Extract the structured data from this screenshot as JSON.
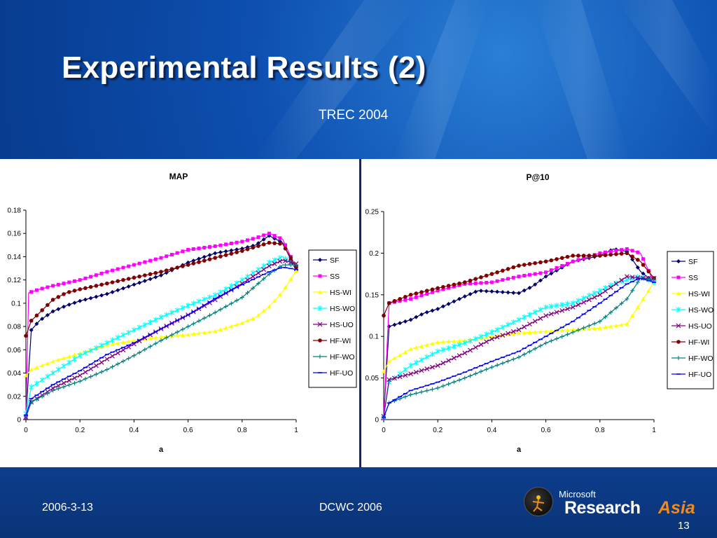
{
  "slide": {
    "title": "Experimental Results (2)",
    "subtitle": "TREC 2004",
    "footer_date": "2006-3-13",
    "footer_conf": "DCWC 2006",
    "page_number": "13",
    "logo_microsoft": "Microsoft",
    "logo_research": "Research",
    "logo_asia": "Asia"
  },
  "colors": {
    "background": "#0d4fb0",
    "SF": "#00006b",
    "SS": "#ff00ff",
    "HS-WI": "#ffff00",
    "HS-WO": "#00ffff",
    "HS-UO": "#800080",
    "HF-WI": "#800000",
    "HF-WO": "#008080",
    "HF-UO": "#0000ff"
  },
  "chart_data": [
    {
      "type": "line",
      "title": "MAP",
      "xlabel": "a",
      "ylabel": "",
      "xlim": [
        0,
        1
      ],
      "ylim": [
        0,
        0.18
      ],
      "xticks": [
        "0",
        "0.2",
        "0.4",
        "0.6",
        "0.8",
        "1"
      ],
      "yticks": [
        "0",
        "0.02",
        "0.04",
        "0.06",
        "0.08",
        "0.1",
        "0.12",
        "0.14",
        "0.16",
        "0.18"
      ],
      "legend_position": "right",
      "grid": false,
      "series": [
        {
          "name": "SF",
          "points": [
            [
              0,
              0.003
            ],
            [
              0.02,
              0.077
            ],
            [
              0.05,
              0.085
            ],
            [
              0.1,
              0.093
            ],
            [
              0.15,
              0.098
            ],
            [
              0.2,
              0.102
            ],
            [
              0.3,
              0.108
            ],
            [
              0.4,
              0.116
            ],
            [
              0.5,
              0.124
            ],
            [
              0.6,
              0.135
            ],
            [
              0.7,
              0.143
            ],
            [
              0.8,
              0.147
            ],
            [
              0.85,
              0.15
            ],
            [
              0.9,
              0.158
            ],
            [
              0.95,
              0.152
            ],
            [
              1,
              0.128
            ]
          ]
        },
        {
          "name": "SS",
          "points": [
            [
              0,
              0.002
            ],
            [
              0.01,
              0.109
            ],
            [
              0.05,
              0.112
            ],
            [
              0.1,
              0.115
            ],
            [
              0.2,
              0.12
            ],
            [
              0.3,
              0.127
            ],
            [
              0.4,
              0.133
            ],
            [
              0.5,
              0.139
            ],
            [
              0.6,
              0.146
            ],
            [
              0.7,
              0.149
            ],
            [
              0.8,
              0.153
            ],
            [
              0.85,
              0.156
            ],
            [
              0.9,
              0.16
            ],
            [
              0.95,
              0.155
            ],
            [
              1,
              0.13
            ]
          ]
        },
        {
          "name": "HS-WI",
          "points": [
            [
              0,
              0.038
            ],
            [
              0.02,
              0.043
            ],
            [
              0.1,
              0.05
            ],
            [
              0.2,
              0.057
            ],
            [
              0.3,
              0.064
            ],
            [
              0.4,
              0.068
            ],
            [
              0.5,
              0.071
            ],
            [
              0.6,
              0.073
            ],
            [
              0.7,
              0.076
            ],
            [
              0.8,
              0.083
            ],
            [
              0.85,
              0.088
            ],
            [
              0.9,
              0.097
            ],
            [
              0.95,
              0.11
            ],
            [
              1,
              0.128
            ]
          ]
        },
        {
          "name": "HS-WO",
          "points": [
            [
              0,
              0.005
            ],
            [
              0.02,
              0.028
            ],
            [
              0.1,
              0.04
            ],
            [
              0.2,
              0.055
            ],
            [
              0.3,
              0.066
            ],
            [
              0.4,
              0.077
            ],
            [
              0.5,
              0.088
            ],
            [
              0.6,
              0.098
            ],
            [
              0.7,
              0.107
            ],
            [
              0.8,
              0.12
            ],
            [
              0.9,
              0.135
            ],
            [
              0.95,
              0.14
            ],
            [
              1,
              0.131
            ]
          ]
        },
        {
          "name": "HS-UO",
          "points": [
            [
              0,
              0.002
            ],
            [
              0.02,
              0.015
            ],
            [
              0.1,
              0.027
            ],
            [
              0.2,
              0.038
            ],
            [
              0.3,
              0.052
            ],
            [
              0.4,
              0.065
            ],
            [
              0.5,
              0.078
            ],
            [
              0.6,
              0.09
            ],
            [
              0.7,
              0.103
            ],
            [
              0.8,
              0.117
            ],
            [
              0.9,
              0.132
            ],
            [
              0.95,
              0.137
            ],
            [
              1,
              0.134
            ]
          ]
        },
        {
          "name": "HF-WI",
          "points": [
            [
              0,
              0.072
            ],
            [
              0.02,
              0.085
            ],
            [
              0.1,
              0.103
            ],
            [
              0.15,
              0.109
            ],
            [
              0.2,
              0.112
            ],
            [
              0.3,
              0.117
            ],
            [
              0.4,
              0.122
            ],
            [
              0.5,
              0.127
            ],
            [
              0.6,
              0.133
            ],
            [
              0.7,
              0.139
            ],
            [
              0.8,
              0.145
            ],
            [
              0.9,
              0.152
            ],
            [
              0.95,
              0.151
            ],
            [
              1,
              0.131
            ]
          ]
        },
        {
          "name": "HF-WO",
          "points": [
            [
              0,
              0.003
            ],
            [
              0.02,
              0.015
            ],
            [
              0.1,
              0.025
            ],
            [
              0.2,
              0.033
            ],
            [
              0.3,
              0.043
            ],
            [
              0.4,
              0.055
            ],
            [
              0.5,
              0.068
            ],
            [
              0.6,
              0.08
            ],
            [
              0.7,
              0.092
            ],
            [
              0.8,
              0.105
            ],
            [
              0.9,
              0.125
            ],
            [
              0.95,
              0.133
            ],
            [
              1,
              0.133
            ]
          ]
        },
        {
          "name": "HF-UO",
          "points": [
            [
              0,
              0.004
            ],
            [
              0.02,
              0.018
            ],
            [
              0.1,
              0.03
            ],
            [
              0.2,
              0.042
            ],
            [
              0.3,
              0.056
            ],
            [
              0.4,
              0.066
            ],
            [
              0.5,
              0.078
            ],
            [
              0.6,
              0.09
            ],
            [
              0.7,
              0.104
            ],
            [
              0.8,
              0.116
            ],
            [
              0.9,
              0.127
            ],
            [
              0.95,
              0.131
            ],
            [
              1,
              0.129
            ]
          ]
        }
      ]
    },
    {
      "type": "line",
      "title": "P@10",
      "xlabel": "a",
      "ylabel": "",
      "xlim": [
        0,
        1
      ],
      "ylim": [
        0,
        0.25
      ],
      "xticks": [
        "0",
        "0.2",
        "0.4",
        "0.6",
        "0.8",
        "1"
      ],
      "yticks": [
        "0",
        "0.05",
        "0.1",
        "0.15",
        "0.2",
        "0.25"
      ],
      "legend_position": "right",
      "grid": false,
      "series": [
        {
          "name": "SF",
          "points": [
            [
              0,
              0.003
            ],
            [
              0.02,
              0.112
            ],
            [
              0.1,
              0.12
            ],
            [
              0.15,
              0.128
            ],
            [
              0.2,
              0.133
            ],
            [
              0.3,
              0.148
            ],
            [
              0.35,
              0.155
            ],
            [
              0.4,
              0.154
            ],
            [
              0.5,
              0.152
            ],
            [
              0.55,
              0.16
            ],
            [
              0.6,
              0.172
            ],
            [
              0.7,
              0.19
            ],
            [
              0.8,
              0.197
            ],
            [
              0.85,
              0.205
            ],
            [
              0.9,
              0.202
            ],
            [
              0.95,
              0.178
            ],
            [
              1,
              0.165
            ]
          ]
        },
        {
          "name": "SS",
          "points": [
            [
              0,
              0.002
            ],
            [
              0.02,
              0.14
            ],
            [
              0.1,
              0.145
            ],
            [
              0.2,
              0.155
            ],
            [
              0.3,
              0.163
            ],
            [
              0.4,
              0.165
            ],
            [
              0.5,
              0.172
            ],
            [
              0.6,
              0.177
            ],
            [
              0.7,
              0.19
            ],
            [
              0.8,
              0.2
            ],
            [
              0.9,
              0.205
            ],
            [
              0.95,
              0.2
            ],
            [
              1,
              0.165
            ]
          ]
        },
        {
          "name": "HS-WI",
          "points": [
            [
              0,
              0.058
            ],
            [
              0.02,
              0.07
            ],
            [
              0.1,
              0.085
            ],
            [
              0.2,
              0.093
            ],
            [
              0.3,
              0.095
            ],
            [
              0.4,
              0.1
            ],
            [
              0.5,
              0.104
            ],
            [
              0.6,
              0.106
            ],
            [
              0.7,
              0.108
            ],
            [
              0.8,
              0.11
            ],
            [
              0.9,
              0.115
            ],
            [
              0.95,
              0.14
            ],
            [
              1,
              0.165
            ]
          ]
        },
        {
          "name": "HS-WO",
          "points": [
            [
              0,
              0.003
            ],
            [
              0.02,
              0.045
            ],
            [
              0.1,
              0.065
            ],
            [
              0.2,
              0.082
            ],
            [
              0.3,
              0.092
            ],
            [
              0.4,
              0.105
            ],
            [
              0.5,
              0.12
            ],
            [
              0.6,
              0.135
            ],
            [
              0.7,
              0.14
            ],
            [
              0.8,
              0.155
            ],
            [
              0.85,
              0.163
            ],
            [
              0.9,
              0.168
            ],
            [
              0.95,
              0.172
            ],
            [
              1,
              0.165
            ]
          ]
        },
        {
          "name": "HS-UO",
          "points": [
            [
              0,
              0.004
            ],
            [
              0.02,
              0.048
            ],
            [
              0.1,
              0.055
            ],
            [
              0.2,
              0.065
            ],
            [
              0.3,
              0.08
            ],
            [
              0.4,
              0.097
            ],
            [
              0.5,
              0.108
            ],
            [
              0.6,
              0.125
            ],
            [
              0.7,
              0.135
            ],
            [
              0.8,
              0.15
            ],
            [
              0.9,
              0.172
            ],
            [
              0.95,
              0.17
            ],
            [
              1,
              0.17
            ]
          ]
        },
        {
          "name": "HF-WI",
          "points": [
            [
              0,
              0.125
            ],
            [
              0.02,
              0.14
            ],
            [
              0.1,
              0.15
            ],
            [
              0.2,
              0.158
            ],
            [
              0.3,
              0.165
            ],
            [
              0.4,
              0.175
            ],
            [
              0.5,
              0.185
            ],
            [
              0.6,
              0.19
            ],
            [
              0.7,
              0.197
            ],
            [
              0.8,
              0.197
            ],
            [
              0.9,
              0.2
            ],
            [
              0.95,
              0.19
            ],
            [
              1,
              0.17
            ]
          ]
        },
        {
          "name": "HF-WO",
          "points": [
            [
              0,
              0.002
            ],
            [
              0.02,
              0.02
            ],
            [
              0.1,
              0.03
            ],
            [
              0.2,
              0.038
            ],
            [
              0.3,
              0.05
            ],
            [
              0.4,
              0.063
            ],
            [
              0.5,
              0.075
            ],
            [
              0.6,
              0.092
            ],
            [
              0.7,
              0.105
            ],
            [
              0.8,
              0.118
            ],
            [
              0.9,
              0.145
            ],
            [
              0.95,
              0.17
            ],
            [
              1,
              0.168
            ]
          ]
        },
        {
          "name": "HF-UO",
          "points": [
            [
              0,
              0.003
            ],
            [
              0.02,
              0.02
            ],
            [
              0.1,
              0.035
            ],
            [
              0.2,
              0.045
            ],
            [
              0.3,
              0.057
            ],
            [
              0.4,
              0.07
            ],
            [
              0.5,
              0.082
            ],
            [
              0.6,
              0.1
            ],
            [
              0.7,
              0.118
            ],
            [
              0.8,
              0.14
            ],
            [
              0.9,
              0.163
            ],
            [
              0.95,
              0.17
            ],
            [
              1,
              0.165
            ]
          ]
        }
      ]
    }
  ]
}
